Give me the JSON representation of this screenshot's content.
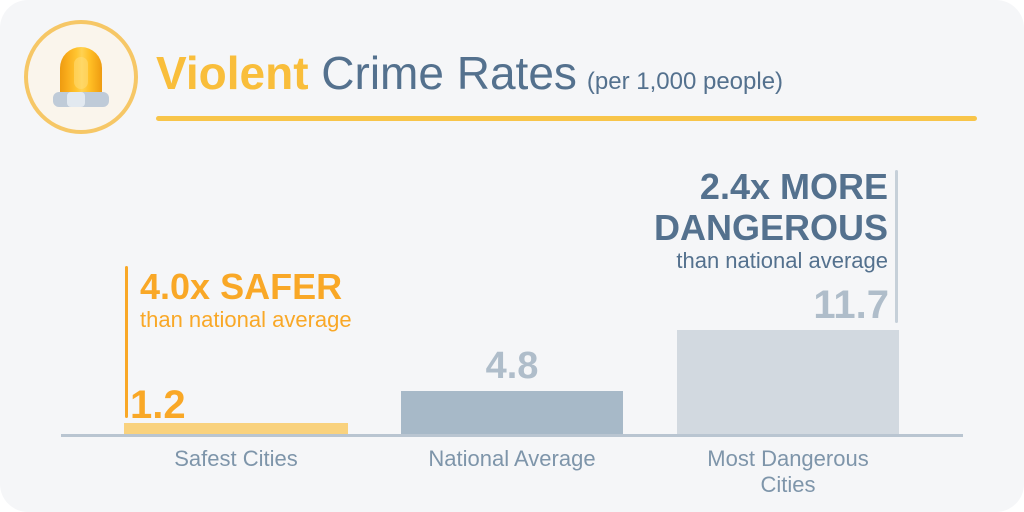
{
  "header": {
    "title_highlight": "Violent",
    "title_rest": " Crime Rates",
    "subtitle": "(per 1,000 people)",
    "icon": "siren-icon"
  },
  "colors": {
    "card_background": "#F5F6F8",
    "accent_orange": "#F9A827",
    "title_yellow": "#F9BE3B",
    "title_blue": "#54718E",
    "underline_yellow": "#F8C54A",
    "bar_safest": "#F9D27E",
    "bar_national": "#A7B9C8",
    "bar_dangerous": "#D2D9E0",
    "value_gray": "#AFBDCA",
    "label_gray_blue": "#7E95AA",
    "baseline_gray": "#B9C5D1"
  },
  "chart_data": {
    "type": "bar",
    "title": "Violent Crime Rates",
    "subtitle": "(per 1,000 people)",
    "categories": [
      "Safest Cities",
      "National Average",
      "Most Dangerous Cities"
    ],
    "values": [
      1.2,
      4.8,
      11.7
    ],
    "value_labels": [
      "1.2",
      "4.8",
      "11.7"
    ],
    "ylim": [
      0,
      11.7
    ],
    "grid": false,
    "legend": false,
    "bar_colors": [
      "#F9D27E",
      "#A7B9C8",
      "#D2D9E0"
    ],
    "annotations": [
      {
        "target": "Safest Cities",
        "headline": "4.0x SAFER",
        "subtext": "than national average",
        "color": "#F9A827",
        "side": "left"
      },
      {
        "target": "Most Dangerous Cities",
        "headline": "2.4x MORE DANGEROUS",
        "subtext": "than national average",
        "color": "#54718E",
        "side": "right"
      }
    ]
  }
}
